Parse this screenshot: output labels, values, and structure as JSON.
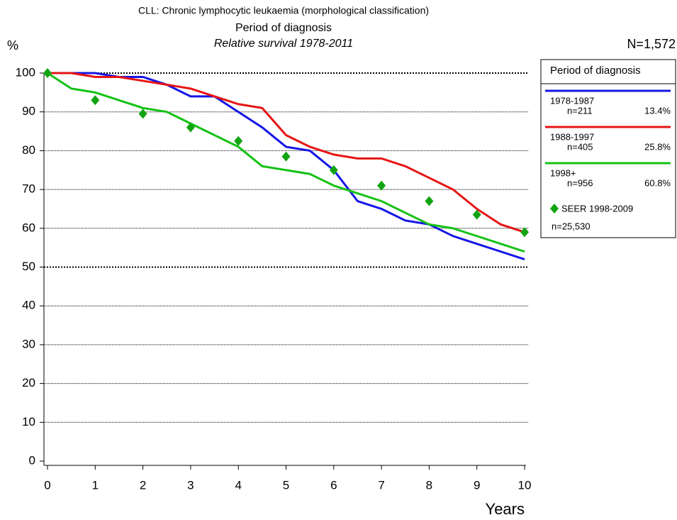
{
  "chart_data": {
    "type": "line",
    "title": "CLL: Chronic lymphocytic leukaemia (morphological classification)",
    "subtitle": "Period of diagnosis",
    "subtitle2": "Relative survival 1978-2011",
    "y_label": "%",
    "x_label": "Years",
    "n_total": "N=1,572",
    "legend_title": "Period of diagnosis",
    "xlim": [
      0,
      10
    ],
    "xticks": [
      0,
      1,
      2,
      3,
      4,
      5,
      6,
      7,
      8,
      9,
      10
    ],
    "ylim": [
      0,
      100
    ],
    "yticks": [
      0,
      10,
      20,
      30,
      40,
      50,
      60,
      70,
      80,
      90,
      100
    ],
    "grid": true,
    "series": [
      {
        "name": "1978-1987",
        "n": "n=211",
        "share": "13.4%",
        "color": "#1515e6",
        "x": [
          0,
          0.5,
          1,
          1.5,
          2,
          2.5,
          3,
          3.5,
          4,
          4.5,
          5,
          5.5,
          6,
          6.5,
          7,
          7.5,
          8,
          8.5,
          9,
          9.5,
          10
        ],
        "values": [
          100,
          100,
          100,
          99,
          99,
          97,
          94,
          94,
          90,
          86,
          81,
          80,
          75,
          67,
          65,
          62,
          61,
          58,
          56,
          54,
          52
        ]
      },
      {
        "name": "1988-1997",
        "n": "n=405",
        "share": "25.8%",
        "color": "#e61515",
        "x": [
          0,
          0.5,
          1,
          1.5,
          2,
          2.5,
          3,
          3.5,
          4,
          4.5,
          5,
          5.5,
          6,
          6.5,
          7,
          7.5,
          8,
          8.5,
          9,
          9.5,
          10
        ],
        "values": [
          100,
          100,
          99,
          99,
          98,
          97,
          96,
          94,
          92,
          91,
          84,
          81,
          79,
          78,
          78,
          76,
          73,
          70,
          65,
          61,
          59
        ]
      },
      {
        "name": "1998+",
        "n": "n=956",
        "share": "60.8%",
        "color": "#15c215",
        "x": [
          0,
          0.5,
          1,
          1.5,
          2,
          2.5,
          3,
          3.5,
          4,
          4.5,
          5,
          5.5,
          6,
          6.5,
          7,
          7.5,
          8,
          8.5,
          9,
          9.5,
          10
        ],
        "values": [
          100,
          96,
          95,
          93,
          91,
          90,
          87,
          84,
          81,
          76,
          75,
          74,
          71,
          69,
          67,
          64,
          61,
          60,
          58,
          56,
          54
        ]
      },
      {
        "name": "SEER 1998-2009",
        "n": "n=25,530",
        "color": "#12a412",
        "marker": "diamond",
        "x": [
          0,
          1,
          2,
          3,
          4,
          5,
          6,
          7,
          8,
          9,
          10
        ],
        "values": [
          100,
          93,
          89.5,
          86,
          82.5,
          78.5,
          75,
          71,
          67,
          63.5,
          59
        ]
      }
    ]
  }
}
